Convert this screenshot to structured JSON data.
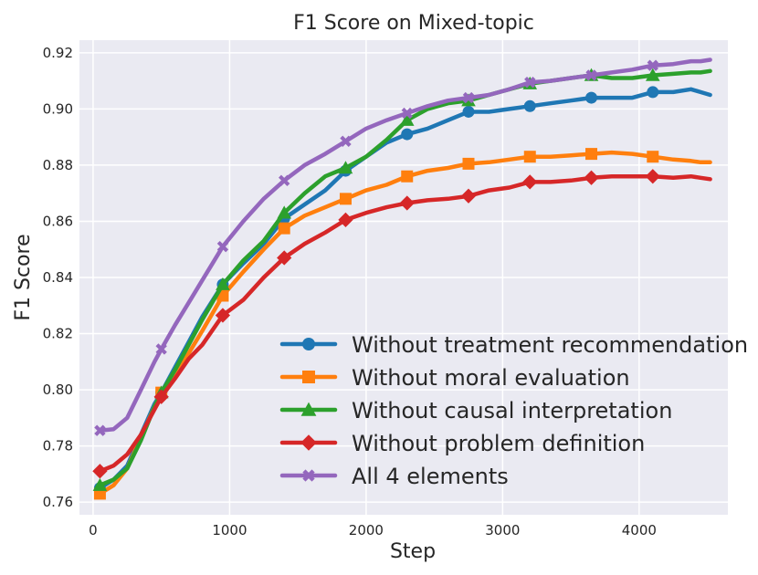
{
  "chart_data": {
    "type": "line",
    "title": "F1 Score on Mixed-topic",
    "xlabel": "Step",
    "ylabel": "F1 Score",
    "xlim": [
      -100,
      4650
    ],
    "ylim": [
      0.7555,
      0.9245
    ],
    "xticks": [
      0,
      1000,
      2000,
      3000,
      4000
    ],
    "yticks": [
      0.76,
      0.78,
      0.8,
      0.82,
      0.84,
      0.86,
      0.88,
      0.9,
      0.92
    ],
    "grid": true,
    "legend_position": "bottom-right",
    "series": [
      {
        "name": "Without treatment recommendation",
        "color": "#1f77b4",
        "marker": "circle",
        "x": [
          50,
          150,
          250,
          350,
          450,
          500,
          600,
          700,
          800,
          950,
          1100,
          1250,
          1400,
          1550,
          1700,
          1850,
          2000,
          2150,
          2300,
          2450,
          2600,
          2750,
          2900,
          3050,
          3200,
          3350,
          3500,
          3650,
          3800,
          3950,
          4100,
          4250,
          4380,
          4450,
          4520
        ],
        "y": [
          0.765,
          0.768,
          0.773,
          0.784,
          0.795,
          0.799,
          0.808,
          0.817,
          0.826,
          0.8375,
          0.845,
          0.852,
          0.861,
          0.866,
          0.871,
          0.878,
          0.883,
          0.888,
          0.891,
          0.893,
          0.896,
          0.899,
          0.899,
          0.9,
          0.901,
          0.902,
          0.903,
          0.904,
          0.904,
          0.904,
          0.906,
          0.906,
          0.907,
          0.906,
          0.905
        ],
        "marker_x": [
          50,
          500,
          950,
          1400,
          1850,
          2300,
          2750,
          3200,
          3650,
          4100
        ]
      },
      {
        "name": "Without moral evaluation",
        "color": "#ff7f0e",
        "marker": "square",
        "x": [
          50,
          150,
          250,
          350,
          450,
          500,
          600,
          700,
          800,
          950,
          1100,
          1250,
          1400,
          1550,
          1700,
          1850,
          2000,
          2150,
          2300,
          2450,
          2600,
          2750,
          2900,
          3050,
          3200,
          3350,
          3500,
          3650,
          3800,
          3950,
          4100,
          4250,
          4380,
          4450,
          4520
        ],
        "y": [
          0.763,
          0.766,
          0.772,
          0.783,
          0.794,
          0.799,
          0.806,
          0.813,
          0.821,
          0.8335,
          0.842,
          0.85,
          0.8575,
          0.862,
          0.865,
          0.868,
          0.871,
          0.873,
          0.876,
          0.878,
          0.879,
          0.8805,
          0.881,
          0.882,
          0.883,
          0.883,
          0.8835,
          0.884,
          0.8845,
          0.884,
          0.883,
          0.882,
          0.8815,
          0.881,
          0.881
        ],
        "marker_x": [
          50,
          500,
          950,
          1400,
          1850,
          2300,
          2750,
          3200,
          3650,
          4100
        ]
      },
      {
        "name": "Without causal interpretation",
        "color": "#2ca02c",
        "marker": "triangle",
        "x": [
          50,
          150,
          250,
          350,
          450,
          500,
          600,
          700,
          800,
          950,
          1100,
          1250,
          1400,
          1550,
          1700,
          1850,
          2000,
          2150,
          2300,
          2450,
          2600,
          2750,
          2900,
          3050,
          3200,
          3350,
          3500,
          3650,
          3800,
          3950,
          4100,
          4250,
          4380,
          4450,
          4520
        ],
        "y": [
          0.766,
          0.768,
          0.772,
          0.782,
          0.794,
          0.799,
          0.807,
          0.816,
          0.825,
          0.8375,
          0.846,
          0.853,
          0.863,
          0.87,
          0.876,
          0.879,
          0.883,
          0.889,
          0.896,
          0.9,
          0.902,
          0.903,
          0.905,
          0.907,
          0.909,
          0.91,
          0.911,
          0.912,
          0.911,
          0.911,
          0.912,
          0.9125,
          0.913,
          0.913,
          0.9135
        ],
        "marker_x": [
          50,
          500,
          950,
          1400,
          1850,
          2300,
          2750,
          3200,
          3650,
          4100
        ]
      },
      {
        "name": "Without problem definition",
        "color": "#d62728",
        "marker": "diamond",
        "x": [
          50,
          150,
          250,
          350,
          450,
          500,
          600,
          700,
          800,
          950,
          1100,
          1250,
          1400,
          1550,
          1700,
          1850,
          2000,
          2150,
          2300,
          2450,
          2600,
          2750,
          2900,
          3050,
          3200,
          3350,
          3500,
          3650,
          3800,
          3950,
          4100,
          4250,
          4380,
          4450,
          4520
        ],
        "y": [
          0.771,
          0.773,
          0.777,
          0.784,
          0.793,
          0.7975,
          0.804,
          0.811,
          0.816,
          0.8265,
          0.832,
          0.84,
          0.847,
          0.852,
          0.856,
          0.8605,
          0.863,
          0.865,
          0.8665,
          0.8675,
          0.868,
          0.869,
          0.871,
          0.872,
          0.874,
          0.874,
          0.8745,
          0.8755,
          0.876,
          0.876,
          0.876,
          0.8755,
          0.876,
          0.8755,
          0.875
        ],
        "marker_x": [
          50,
          500,
          950,
          1400,
          1850,
          2300,
          2750,
          3200,
          3650,
          4100
        ]
      },
      {
        "name": "All 4 elements",
        "color": "#9467bd",
        "marker": "x",
        "x": [
          50,
          150,
          250,
          350,
          450,
          500,
          600,
          700,
          800,
          950,
          1100,
          1250,
          1400,
          1550,
          1700,
          1850,
          2000,
          2150,
          2300,
          2450,
          2600,
          2750,
          2900,
          3050,
          3200,
          3350,
          3500,
          3650,
          3800,
          3950,
          4100,
          4250,
          4380,
          4450,
          4520
        ],
        "y": [
          0.7855,
          0.786,
          0.79,
          0.8,
          0.81,
          0.8145,
          0.823,
          0.831,
          0.839,
          0.851,
          0.86,
          0.868,
          0.8745,
          0.88,
          0.884,
          0.8885,
          0.893,
          0.896,
          0.8985,
          0.901,
          0.903,
          0.904,
          0.905,
          0.907,
          0.9095,
          0.91,
          0.911,
          0.912,
          0.913,
          0.914,
          0.9155,
          0.916,
          0.917,
          0.917,
          0.9175
        ],
        "marker_x": [
          50,
          500,
          950,
          1400,
          1850,
          2300,
          2750,
          3200,
          3650,
          4100
        ]
      }
    ]
  }
}
